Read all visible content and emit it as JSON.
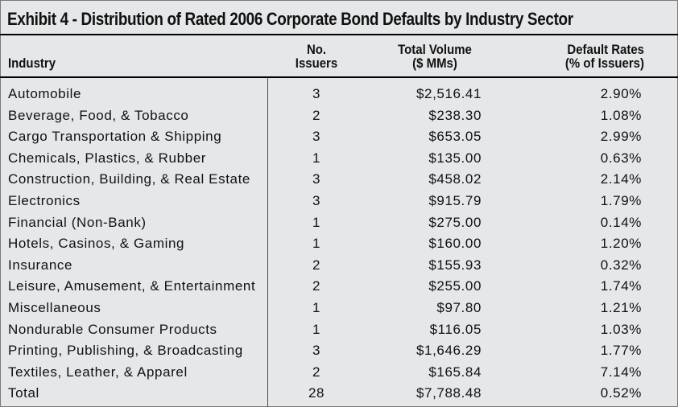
{
  "title": "Exhibit 4 - Distribution of Rated 2006 Corporate Bond Defaults by Industry Sector",
  "headers": {
    "industry": "Industry",
    "issuers_line1": "No.",
    "issuers_line2": "Issuers",
    "volume_line1": "Total Volume",
    "volume_line2": "($ MMs)",
    "rate_line1": "Default Rates",
    "rate_line2": "(% of Issuers)"
  },
  "rows": [
    {
      "industry": "Automobile",
      "issuers": "3",
      "volume": "$2,516.41",
      "rate": "2.90%"
    },
    {
      "industry": "Beverage, Food, & Tobacco",
      "issuers": "2",
      "volume": "$238.30",
      "rate": "1.08%"
    },
    {
      "industry": "Cargo Transportation & Shipping",
      "issuers": "3",
      "volume": "$653.05",
      "rate": "2.99%"
    },
    {
      "industry": "Chemicals, Plastics, & Rubber",
      "issuers": "1",
      "volume": "$135.00",
      "rate": "0.63%"
    },
    {
      "industry": "Construction, Building, & Real Estate",
      "issuers": "3",
      "volume": "$458.02",
      "rate": "2.14%"
    },
    {
      "industry": "Electronics",
      "issuers": "3",
      "volume": "$915.79",
      "rate": "1.79%"
    },
    {
      "industry": "Financial (Non-Bank)",
      "issuers": "1",
      "volume": "$275.00",
      "rate": "0.14%"
    },
    {
      "industry": "Hotels, Casinos, & Gaming",
      "issuers": "1",
      "volume": "$160.00",
      "rate": "1.20%"
    },
    {
      "industry": "Insurance",
      "issuers": "2",
      "volume": "$155.93",
      "rate": "0.32%"
    },
    {
      "industry": "Leisure, Amusement, & Entertainment",
      "issuers": "2",
      "volume": "$255.00",
      "rate": "1.74%"
    },
    {
      "industry": "Miscellaneous",
      "issuers": "1",
      "volume": "$97.80",
      "rate": "1.21%"
    },
    {
      "industry": "Nondurable Consumer Products",
      "issuers": "1",
      "volume": "$116.05",
      "rate": "1.03%"
    },
    {
      "industry": "Printing, Publishing, & Broadcasting",
      "issuers": "3",
      "volume": "$1,646.29",
      "rate": "1.77%"
    },
    {
      "industry": "Textiles, Leather, & Apparel",
      "issuers": "2",
      "volume": "$165.84",
      "rate": "7.14%"
    },
    {
      "industry": "Total",
      "issuers": "28",
      "volume": "$7,788.48",
      "rate": "0.52%"
    }
  ]
}
